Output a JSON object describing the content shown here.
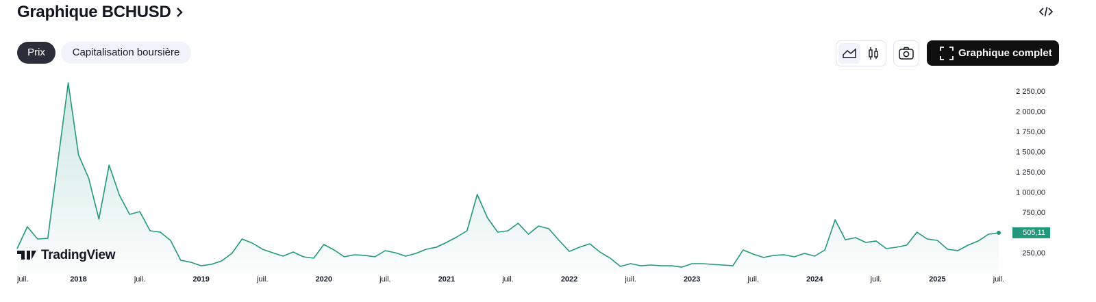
{
  "header": {
    "title": "Graphique BCHUSD"
  },
  "tabs": [
    "Prix",
    "Capitalisation boursière"
  ],
  "buttons": {
    "full_chart": "Graphique complet"
  },
  "watermark": "TradingView",
  "chart_data": {
    "type": "area",
    "x": [
      "2017-07",
      "2017-08",
      "2017-09",
      "2017-10",
      "2017-11",
      "2017-12",
      "2018-01",
      "2018-02",
      "2018-03",
      "2018-04",
      "2018-05",
      "2018-06",
      "2018-07",
      "2018-08",
      "2018-09",
      "2018-10",
      "2018-11",
      "2018-12",
      "2019-01",
      "2019-02",
      "2019-03",
      "2019-04",
      "2019-05",
      "2019-06",
      "2019-07",
      "2019-08",
      "2019-09",
      "2019-10",
      "2019-11",
      "2019-12",
      "2020-01",
      "2020-02",
      "2020-03",
      "2020-04",
      "2020-05",
      "2020-06",
      "2020-07",
      "2020-08",
      "2020-09",
      "2020-10",
      "2020-11",
      "2020-12",
      "2021-01",
      "2021-02",
      "2021-03",
      "2021-04",
      "2021-05",
      "2021-06",
      "2021-07",
      "2021-08",
      "2021-09",
      "2021-10",
      "2021-11",
      "2021-12",
      "2022-01",
      "2022-02",
      "2022-03",
      "2022-04",
      "2022-05",
      "2022-06",
      "2022-07",
      "2022-08",
      "2022-09",
      "2022-10",
      "2022-11",
      "2022-12",
      "2023-01",
      "2023-02",
      "2023-03",
      "2023-04",
      "2023-05",
      "2023-06",
      "2023-07",
      "2023-08",
      "2023-09",
      "2023-10",
      "2023-11",
      "2023-12",
      "2024-01",
      "2024-02",
      "2024-03",
      "2024-04",
      "2024-05",
      "2024-06",
      "2024-07",
      "2024-08",
      "2024-09",
      "2024-10",
      "2024-11",
      "2024-12",
      "2025-01",
      "2025-02",
      "2025-03",
      "2025-04",
      "2025-05",
      "2025-06",
      "2025-07"
    ],
    "values": [
      309,
      580,
      428,
      436,
      1400,
      2360,
      1470,
      1180,
      674,
      1343,
      970,
      733,
      767,
      530,
      513,
      411,
      165,
      140,
      97,
      114,
      157,
      250,
      428,
      377,
      301,
      258,
      216,
      267,
      208,
      191,
      360,
      292,
      208,
      233,
      225,
      208,
      284,
      258,
      216,
      250,
      301,
      326,
      386,
      453,
      530,
      979,
      691,
      513,
      530,
      623,
      487,
      589,
      555,
      411,
      275,
      326,
      369,
      267,
      191,
      89,
      123,
      97,
      106,
      97,
      97,
      80,
      123,
      123,
      114,
      106,
      97,
      292,
      241,
      199,
      225,
      233,
      208,
      250,
      216,
      292,
      665,
      419,
      445,
      386,
      403,
      309,
      326,
      352,
      513,
      428,
      411,
      301,
      284,
      352,
      403,
      487,
      505.11
    ],
    "price_tag": "505,11",
    "color": "#22977b",
    "xlim": [
      "2017-07",
      "2025-07"
    ],
    "xticks": [
      {
        "value": "2017-07",
        "label": "juil."
      },
      {
        "value": "2018-01",
        "label": "2018"
      },
      {
        "value": "2018-07",
        "label": "juil."
      },
      {
        "value": "2019-01",
        "label": "2019"
      },
      {
        "value": "2019-07",
        "label": "juil."
      },
      {
        "value": "2020-01",
        "label": "2020"
      },
      {
        "value": "2020-07",
        "label": "juil."
      },
      {
        "value": "2021-01",
        "label": "2021"
      },
      {
        "value": "2021-07",
        "label": "juil."
      },
      {
        "value": "2022-01",
        "label": "2022"
      },
      {
        "value": "2022-07",
        "label": "juil."
      },
      {
        "value": "2023-01",
        "label": "2023"
      },
      {
        "value": "2023-07",
        "label": "juil."
      },
      {
        "value": "2024-01",
        "label": "2024"
      },
      {
        "value": "2024-07",
        "label": "juil."
      },
      {
        "value": "2025-01",
        "label": "2025"
      },
      {
        "value": "2025-07",
        "label": "juil."
      }
    ],
    "ylim": [
      0,
      2400
    ],
    "yticks": [
      {
        "value": 250,
        "label": "250,00"
      },
      {
        "value": 750,
        "label": "750,00"
      },
      {
        "value": 1000,
        "label": "1 000,00"
      },
      {
        "value": 1250,
        "label": "1 250,00"
      },
      {
        "value": 1500,
        "label": "1 500,00"
      },
      {
        "value": 1750,
        "label": "1 750,00"
      },
      {
        "value": 2000,
        "label": "2 000,00"
      },
      {
        "value": 2250,
        "label": "2 250,00"
      }
    ]
  }
}
